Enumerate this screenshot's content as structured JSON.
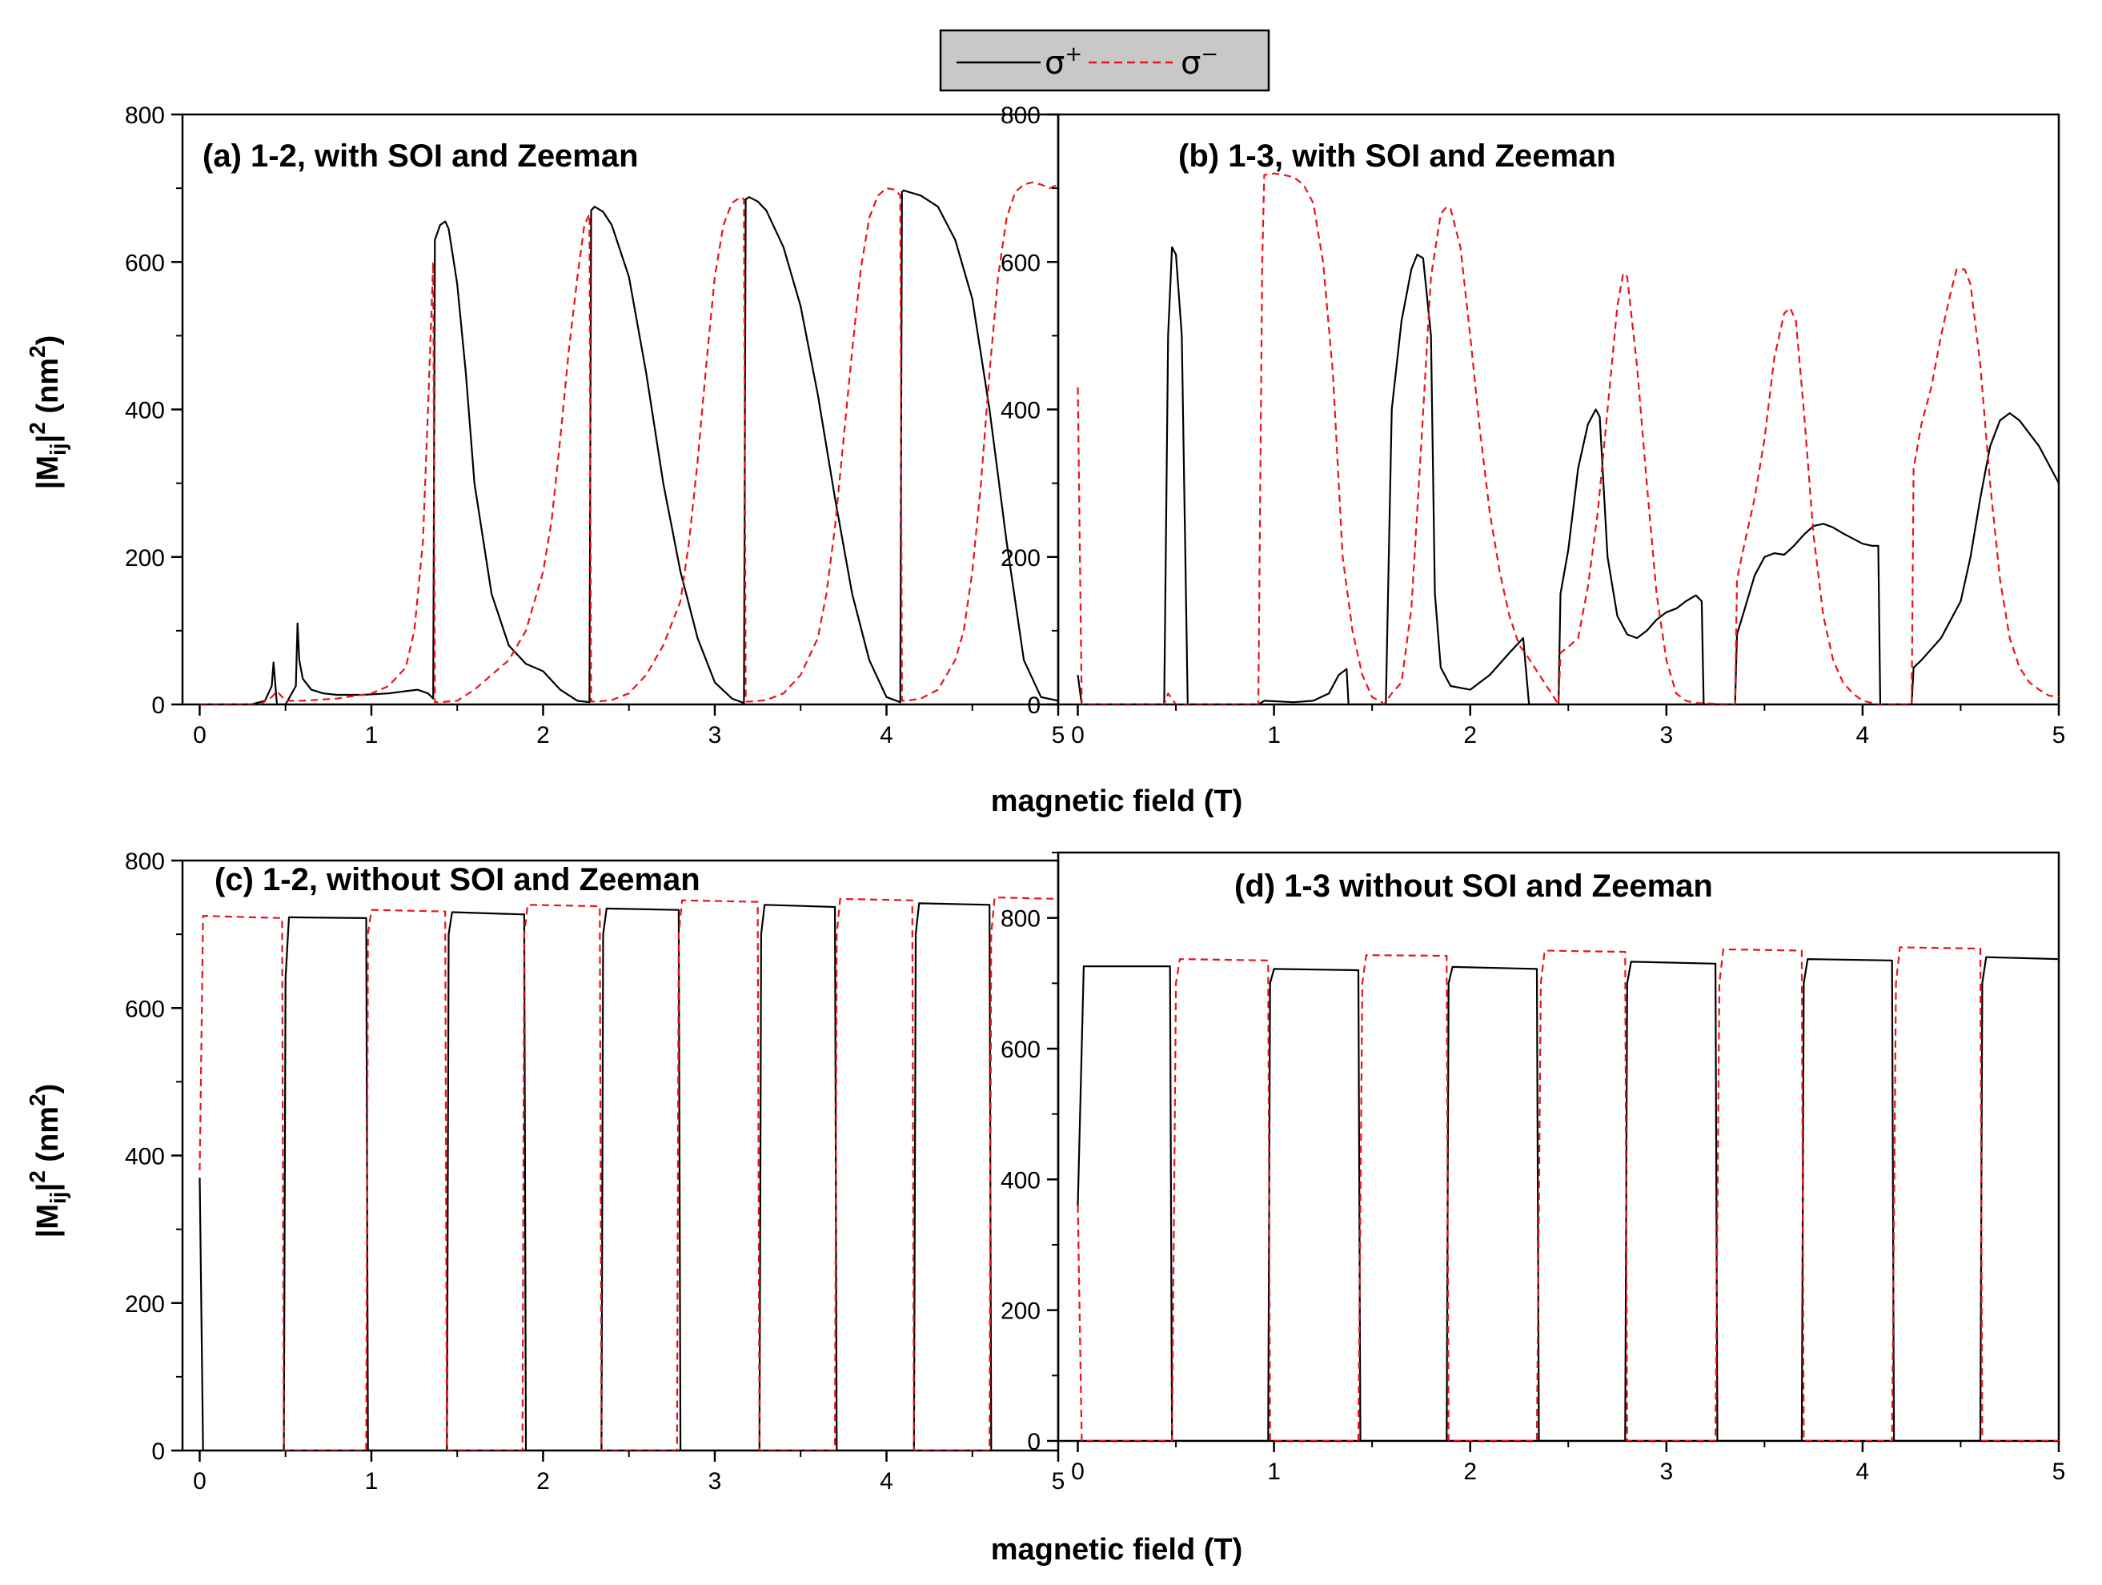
{
  "legend": {
    "items": [
      {
        "symbol": "σ",
        "sup": "+",
        "color": "#000000",
        "dash": "solid"
      },
      {
        "symbol": "σ",
        "sup": "−",
        "color": "#e8141b",
        "dash": "dashed"
      }
    ]
  },
  "axis_titles": {
    "x_top": "magnetic field (T)",
    "x_bottom": "magnetic field (T)",
    "y_top": "|M",
    "y_bottom": "|M",
    "y_sub": "ij",
    "y_sup": "2",
    "y_rest": "(nm",
    "y_rest_sup": "2",
    "y_close": ")"
  },
  "colors": {
    "sigma_plus": "#000000",
    "sigma_minus": "#e8141b"
  },
  "chart_data": [
    {
      "id": "a",
      "type": "line",
      "title": "(a) 1-2, with SOI and Zeeman",
      "xlabel": "magnetic field (T)",
      "ylabel": "|Mij|^2 (nm^2)",
      "xlim": [
        -0.1,
        5
      ],
      "ylim": [
        0,
        800
      ],
      "xticks": [
        0,
        1,
        2,
        3,
        4,
        5
      ],
      "yticks": [
        0,
        200,
        400,
        600,
        800
      ],
      "series": [
        {
          "name": "σ+",
          "color": "#000000",
          "dash": "solid",
          "x": [
            0,
            0.3,
            0.38,
            0.42,
            0.43,
            0.45,
            0.5,
            0.56,
            0.57,
            0.58,
            0.6,
            0.65,
            0.72,
            0.8,
            0.95,
            1.1,
            1.2,
            1.27,
            1.33,
            1.36,
            1.37,
            1.4,
            1.43,
            1.45,
            1.5,
            1.55,
            1.6,
            1.7,
            1.8,
            1.9,
            2.0,
            2.1,
            2.2,
            2.27,
            2.28,
            2.3,
            2.35,
            2.4,
            2.5,
            2.6,
            2.7,
            2.8,
            2.9,
            3.0,
            3.1,
            3.17,
            3.18,
            3.2,
            3.25,
            3.3,
            3.4,
            3.5,
            3.6,
            3.7,
            3.8,
            3.9,
            4.0,
            4.08,
            4.09,
            4.1,
            4.2,
            4.3,
            4.4,
            4.5,
            4.6,
            4.7,
            4.8,
            4.9,
            5.0
          ],
          "y": [
            0,
            0,
            5,
            25,
            57,
            0,
            0,
            25,
            110,
            60,
            35,
            20,
            15,
            13,
            13,
            15,
            18,
            20,
            15,
            8,
            630,
            650,
            655,
            645,
            570,
            450,
            300,
            150,
            80,
            55,
            45,
            20,
            5,
            3,
            670,
            675,
            668,
            650,
            580,
            450,
            300,
            180,
            90,
            30,
            8,
            2,
            685,
            688,
            682,
            670,
            620,
            540,
            420,
            280,
            150,
            60,
            10,
            3,
            695,
            697,
            690,
            675,
            630,
            550,
            400,
            220,
            60,
            10,
            5
          ]
        },
        {
          "name": "σ−",
          "color": "#e8141b",
          "dash": "dashed",
          "x": [
            0,
            0.35,
            0.42,
            0.45,
            0.5,
            0.6,
            0.8,
            1.0,
            1.1,
            1.2,
            1.25,
            1.3,
            1.33,
            1.36,
            1.37,
            1.4,
            1.5,
            1.6,
            1.7,
            1.8,
            1.9,
            2.0,
            2.05,
            2.1,
            2.15,
            2.2,
            2.24,
            2.27,
            2.28,
            2.32,
            2.4,
            2.5,
            2.6,
            2.7,
            2.8,
            2.85,
            2.9,
            2.95,
            3.0,
            3.05,
            3.1,
            3.15,
            3.17,
            3.18,
            3.22,
            3.3,
            3.4,
            3.5,
            3.6,
            3.65,
            3.7,
            3.75,
            3.8,
            3.85,
            3.9,
            3.95,
            4.0,
            4.05,
            4.08,
            4.09,
            4.12,
            4.2,
            4.3,
            4.4,
            4.45,
            4.5,
            4.55,
            4.6,
            4.65,
            4.7,
            4.75,
            4.8,
            4.85,
            4.9,
            4.95,
            5.0
          ],
          "y": [
            0,
            0,
            10,
            18,
            5,
            5,
            8,
            15,
            25,
            50,
            100,
            220,
            400,
            600,
            3,
            3,
            5,
            20,
            40,
            60,
            100,
            180,
            250,
            360,
            480,
            580,
            650,
            665,
            4,
            4,
            6,
            15,
            40,
            80,
            140,
            220,
            330,
            460,
            580,
            650,
            680,
            688,
            685,
            4,
            4,
            6,
            15,
            40,
            90,
            150,
            240,
            360,
            480,
            590,
            660,
            690,
            700,
            698,
            690,
            5,
            5,
            8,
            20,
            60,
            100,
            180,
            300,
            450,
            580,
            660,
            695,
            705,
            708,
            705,
            700,
            705
          ]
        }
      ]
    },
    {
      "id": "b",
      "type": "line",
      "title": "(b) 1-3, with SOI and Zeeman",
      "xlabel": "magnetic field (T)",
      "ylabel": "|Mij|^2 (nm^2)",
      "xlim": [
        -0.1,
        5
      ],
      "ylim": [
        0,
        800
      ],
      "xticks": [
        0,
        1,
        2,
        3,
        4,
        5
      ],
      "yticks": [
        0,
        200,
        400,
        600,
        800
      ],
      "series": [
        {
          "name": "σ+",
          "color": "#000000",
          "dash": "solid",
          "x": [
            0,
            0.02,
            0.4,
            0.44,
            0.46,
            0.48,
            0.5,
            0.53,
            0.56,
            0.58,
            0.6,
            0.92,
            0.95,
            1.1,
            1.2,
            1.28,
            1.33,
            1.37,
            1.38,
            1.57,
            1.6,
            1.65,
            1.7,
            1.73,
            1.76,
            1.8,
            1.82,
            1.85,
            1.9,
            2.0,
            2.1,
            2.2,
            2.27,
            2.3,
            2.45,
            2.46,
            2.5,
            2.55,
            2.6,
            2.64,
            2.66,
            2.7,
            2.75,
            2.8,
            2.85,
            2.9,
            2.95,
            3.0,
            3.05,
            3.1,
            3.15,
            3.18,
            3.19,
            3.35,
            3.36,
            3.4,
            3.45,
            3.5,
            3.55,
            3.6,
            3.65,
            3.7,
            3.75,
            3.8,
            3.85,
            3.9,
            3.95,
            4.0,
            4.05,
            4.08,
            4.09,
            4.25,
            4.26,
            4.3,
            4.4,
            4.5,
            4.55,
            4.6,
            4.65,
            4.7,
            4.75,
            4.8,
            4.9,
            4.98,
            5.0
          ],
          "y": [
            40,
            0,
            0,
            0,
            500,
            620,
            610,
            500,
            0,
            0,
            0,
            0,
            5,
            3,
            5,
            15,
            40,
            48,
            0,
            0,
            400,
            520,
            590,
            610,
            605,
            500,
            150,
            50,
            25,
            20,
            40,
            70,
            90,
            0,
            0,
            150,
            210,
            320,
            380,
            400,
            390,
            200,
            120,
            95,
            90,
            100,
            115,
            125,
            130,
            140,
            148,
            140,
            0,
            0,
            95,
            130,
            175,
            200,
            205,
            203,
            215,
            230,
            242,
            245,
            240,
            232,
            225,
            218,
            215,
            215,
            0,
            0,
            50,
            60,
            90,
            140,
            200,
            280,
            350,
            385,
            395,
            385,
            350,
            310,
            300
          ]
        },
        {
          "name": "σ−",
          "color": "#e8141b",
          "dash": "dashed",
          "x": [
            0,
            0.02,
            0.44,
            0.46,
            0.5,
            0.92,
            0.94,
            0.95,
            1.0,
            1.05,
            1.1,
            1.15,
            1.2,
            1.25,
            1.3,
            1.35,
            1.4,
            1.45,
            1.5,
            1.55,
            1.56,
            1.6,
            1.65,
            1.7,
            1.75,
            1.8,
            1.85,
            1.88,
            1.9,
            1.95,
            2.0,
            2.05,
            2.1,
            2.15,
            2.2,
            2.25,
            2.28,
            2.45,
            2.46,
            2.5,
            2.55,
            2.6,
            2.65,
            2.7,
            2.75,
            2.78,
            2.8,
            2.85,
            2.9,
            2.95,
            3.0,
            3.05,
            3.1,
            3.15,
            3.35,
            3.36,
            3.4,
            3.45,
            3.5,
            3.55,
            3.6,
            3.63,
            3.66,
            3.7,
            3.75,
            3.8,
            3.85,
            3.9,
            3.95,
            4.0,
            4.05,
            4.08,
            4.25,
            4.26,
            4.3,
            4.35,
            4.4,
            4.45,
            4.48,
            4.52,
            4.55,
            4.6,
            4.65,
            4.7,
            4.75,
            4.8,
            4.85,
            4.9,
            4.95,
            5.0
          ],
          "y": [
            430,
            0,
            0,
            15,
            0,
            0,
            600,
            718,
            720,
            718,
            715,
            705,
            680,
            600,
            450,
            200,
            100,
            40,
            10,
            3,
            0,
            15,
            30,
            130,
            350,
            580,
            665,
            675,
            672,
            620,
            500,
            370,
            260,
            180,
            120,
            80,
            70,
            0,
            70,
            78,
            90,
            160,
            260,
            400,
            540,
            585,
            580,
            460,
            300,
            150,
            60,
            15,
            5,
            2,
            0,
            170,
            220,
            280,
            360,
            470,
            530,
            538,
            520,
            400,
            230,
            120,
            60,
            30,
            15,
            5,
            2,
            0,
            0,
            320,
            380,
            430,
            500,
            560,
            590,
            590,
            570,
            460,
            300,
            170,
            90,
            50,
            30,
            20,
            12,
            10
          ]
        }
      ]
    },
    {
      "id": "c",
      "type": "line",
      "title": "(c) 1-2, without SOI and Zeeman",
      "xlabel": "magnetic field (T)",
      "ylabel": "|Mij|^2 (nm^2)",
      "xlim": [
        -0.1,
        5
      ],
      "ylim": [
        0,
        800
      ],
      "xticks": [
        0,
        1,
        2,
        3,
        4,
        5
      ],
      "yticks": [
        0,
        200,
        400,
        600,
        800
      ],
      "series": [
        {
          "name": "σ+",
          "color": "#000000",
          "dash": "solid",
          "x": [
            0,
            0.02,
            0.49,
            0.5,
            0.52,
            0.97,
            0.98,
            1.44,
            1.45,
            1.47,
            1.89,
            1.9,
            2.34,
            2.35,
            2.37,
            2.79,
            2.8,
            3.26,
            3.27,
            3.29,
            3.7,
            3.71,
            4.16,
            4.17,
            4.19,
            4.6,
            4.61,
            5.0
          ],
          "y": [
            370,
            0,
            0,
            640,
            723,
            722,
            0,
            0,
            700,
            730,
            727,
            0,
            0,
            700,
            735,
            733,
            0,
            0,
            700,
            740,
            737,
            0,
            0,
            700,
            742,
            740,
            0,
            0
          ]
        },
        {
          "name": "σ−",
          "color": "#e8141b",
          "dash": "dashed",
          "x": [
            0,
            0.02,
            0.48,
            0.49,
            0.97,
            0.98,
            1.0,
            1.43,
            1.44,
            1.88,
            1.89,
            1.91,
            2.33,
            2.34,
            2.78,
            2.79,
            2.81,
            3.25,
            3.26,
            3.7,
            3.71,
            3.73,
            4.15,
            4.16,
            4.6,
            4.61,
            4.63,
            5.0
          ],
          "y": [
            380,
            725,
            722,
            0,
            0,
            700,
            733,
            731,
            0,
            0,
            700,
            740,
            738,
            0,
            0,
            700,
            746,
            744,
            0,
            0,
            700,
            748,
            746,
            0,
            0,
            700,
            750,
            748
          ]
        }
      ]
    },
    {
      "id": "d",
      "type": "line",
      "title": "(d) 1-3 without SOI and Zeeman",
      "xlabel": "magnetic field (T)",
      "ylabel": "|Mij|^2 (nm^2)",
      "xlim": [
        -0.1,
        5
      ],
      "ylim": [
        0,
        900
      ],
      "xticks": [
        0,
        1,
        2,
        3,
        4,
        5
      ],
      "yticks": [
        0,
        200,
        400,
        600,
        800
      ],
      "series": [
        {
          "name": "σ+",
          "color": "#000000",
          "dash": "solid",
          "x": [
            0,
            0.03,
            0.47,
            0.48,
            0.97,
            0.98,
            1.0,
            1.43,
            1.44,
            1.88,
            1.89,
            1.91,
            2.34,
            2.35,
            2.79,
            2.8,
            2.82,
            3.25,
            3.26,
            3.69,
            3.7,
            3.72,
            4.15,
            4.16,
            4.6,
            4.61,
            4.63,
            5.0
          ],
          "y": [
            360,
            726,
            726,
            0,
            0,
            700,
            722,
            720,
            0,
            0,
            700,
            725,
            722,
            0,
            0,
            700,
            733,
            730,
            0,
            0,
            700,
            737,
            735,
            0,
            0,
            700,
            740,
            737
          ]
        },
        {
          "name": "σ−",
          "color": "#e8141b",
          "dash": "dashed",
          "x": [
            0,
            0.02,
            0.48,
            0.5,
            0.52,
            0.97,
            0.98,
            1.43,
            1.45,
            1.47,
            1.88,
            1.89,
            2.34,
            2.36,
            2.38,
            2.79,
            2.8,
            3.25,
            3.27,
            3.29,
            3.69,
            3.7,
            4.15,
            4.17,
            4.19,
            4.6,
            4.61,
            5.0
          ],
          "y": [
            360,
            0,
            0,
            700,
            737,
            735,
            0,
            0,
            700,
            743,
            742,
            0,
            0,
            700,
            750,
            748,
            0,
            0,
            700,
            752,
            750,
            0,
            0,
            700,
            755,
            753,
            0,
            0
          ]
        }
      ]
    }
  ]
}
